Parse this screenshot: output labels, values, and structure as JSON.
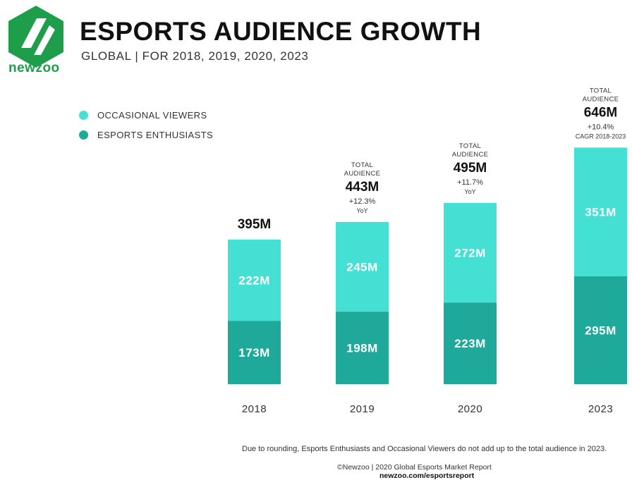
{
  "header": {
    "logo_text": "newzoo",
    "title": "ESPORTS AUDIENCE GROWTH",
    "subtitle": "GLOBAL | FOR 2018, 2019, 2020, 2023"
  },
  "legend": {
    "items": [
      {
        "label": "OCCASIONAL VIEWERS",
        "color": "#45e0d4"
      },
      {
        "label": "ESPORTS ENTHUSIASTS",
        "color": "#1ea99a"
      }
    ]
  },
  "chart_data": {
    "type": "bar",
    "stacked": true,
    "categories": [
      "2018",
      "2019",
      "2020",
      "2023"
    ],
    "series": [
      {
        "name": "ESPORTS ENTHUSIASTS",
        "values": [
          173,
          198,
          223,
          295
        ],
        "labels": [
          "173M",
          "198M",
          "223M",
          "295M"
        ],
        "color": "#1ea99a"
      },
      {
        "name": "OCCASIONAL VIEWERS",
        "values": [
          222,
          245,
          272,
          351
        ],
        "labels": [
          "222M",
          "245M",
          "272M",
          "351M"
        ],
        "color": "#45e0d4"
      }
    ],
    "totals": [
      {
        "caption": "",
        "value": "395M",
        "growth": "",
        "growth_note": ""
      },
      {
        "caption": "TOTAL AUDIENCE",
        "value": "443M",
        "growth": "+12.3%",
        "growth_note": "YoY"
      },
      {
        "caption": "TOTAL AUDIENCE",
        "value": "495M",
        "growth": "+11.7%",
        "growth_note": "YoY"
      },
      {
        "caption": "TOTAL AUDIENCE",
        "value": "646M",
        "growth": "+10.4%",
        "growth_note": "CAGR 2018-2023"
      }
    ],
    "legend_position": "top-left",
    "grid": false
  },
  "footer": {
    "footnote": "Due to rounding, Esports Enthusiasts and Occasional Viewers do not add up to the total audience in 2023.",
    "source_line": "©Newzoo | 2020 Global Esports Market Report",
    "source_url": "newzoo.com/esportsreport"
  }
}
